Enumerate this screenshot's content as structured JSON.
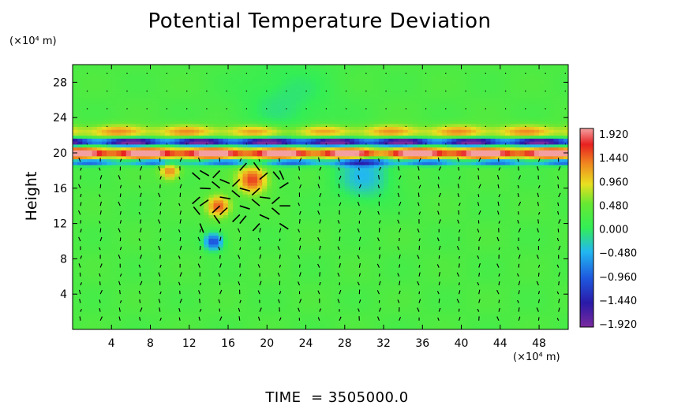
{
  "chart_data": {
    "type": "heatmap",
    "title": "Potential Temperature Deviation",
    "ylabel": "Height",
    "x_unit": "(×10⁴ m)",
    "y_unit": "(×10⁴ m)",
    "x_ticks": [
      4,
      8,
      12,
      16,
      20,
      24,
      28,
      32,
      36,
      40,
      44,
      48
    ],
    "y_ticks": [
      4,
      8,
      12,
      16,
      20,
      24,
      28
    ],
    "xlim": [
      0,
      51
    ],
    "ylim": [
      0,
      30
    ],
    "colorbar": {
      "labels": [
        "1.920",
        "1.440",
        "0.960",
        "0.480",
        "0.000",
        "−0.480",
        "−0.960",
        "−1.440",
        "−1.920"
      ],
      "range": [
        -1.92,
        1.92
      ],
      "colors": [
        "#7a2a9e",
        "#2a1aa8",
        "#1e5ae0",
        "#22b8f0",
        "#33ee55",
        "#66e833",
        "#e8e020",
        "#f08a20",
        "#e82020",
        "#f4a0a0"
      ]
    },
    "vector_field": "wind",
    "features": [
      {
        "kind": "band",
        "y_center": 20.0,
        "y_halfwidth": 0.6,
        "value": 1.9
      },
      {
        "kind": "band",
        "y_center": 21.3,
        "y_halfwidth": 0.5,
        "value": -1.7
      },
      {
        "kind": "band",
        "y_center": 19.0,
        "y_halfwidth": 0.4,
        "value": -0.9
      },
      {
        "kind": "band",
        "y_center": 22.4,
        "y_halfwidth": 0.8,
        "value": 0.8
      },
      {
        "kind": "blob",
        "x": 18.5,
        "y": 17.0,
        "r": 1.5,
        "value": 1.4
      },
      {
        "kind": "blob",
        "x": 15.0,
        "y": 14.0,
        "r": 1.2,
        "value": 1.3
      },
      {
        "kind": "blob",
        "x": 10.0,
        "y": 18.0,
        "r": 1.0,
        "value": 1.1
      },
      {
        "kind": "blob",
        "x": 14.5,
        "y": 10.0,
        "r": 1.0,
        "value": -1.2
      },
      {
        "kind": "blob",
        "x": 30.0,
        "y": 17.5,
        "r": 3.0,
        "value": -0.6
      },
      {
        "kind": "blob",
        "x": 22.0,
        "y": 26.0,
        "r": 5.0,
        "value": -0.3
      }
    ]
  },
  "time": {
    "label": "TIME  =",
    "value": "3505000.0"
  }
}
